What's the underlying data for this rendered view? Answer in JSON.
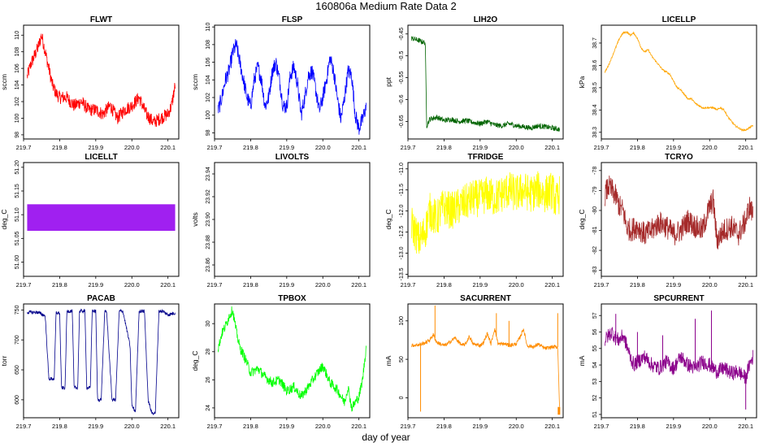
{
  "figure": {
    "title": "160806a   Medium Rate Data 2",
    "xlabel": "day of year"
  },
  "chart_data": [
    {
      "type": "line",
      "title": "FLWT",
      "ylabel": "sccm",
      "color": "#ff0000",
      "xlim": [
        219.7,
        220.13
      ],
      "ylim": [
        97.5,
        111.2
      ],
      "yticks": [
        98,
        100,
        102,
        104,
        106,
        108,
        110
      ],
      "xticks": [
        219.7,
        219.8,
        219.9,
        220.0,
        220.1
      ],
      "xticklabels": [
        "219.7",
        "219.8",
        "219.9",
        "220.0",
        "220.1"
      ],
      "x": [
        219.71,
        219.72,
        219.73,
        219.74,
        219.75,
        219.76,
        219.77,
        219.78,
        219.79,
        219.8,
        219.82,
        219.84,
        219.86,
        219.88,
        219.9,
        219.92,
        219.94,
        219.96,
        219.98,
        220.0,
        220.02,
        220.04,
        220.06,
        220.08,
        220.1,
        220.11,
        220.12
      ],
      "y": [
        105,
        106.5,
        107.5,
        108.5,
        110,
        108,
        106,
        104,
        103,
        102.5,
        102.5,
        101.5,
        102,
        101,
        101,
        100.5,
        101.5,
        100,
        101,
        101.5,
        102.5,
        100.5,
        99.5,
        100,
        100.5,
        101.5,
        104
      ],
      "band": 1.6
    },
    {
      "type": "line",
      "title": "FLSP",
      "ylabel": "sccm",
      "color": "#0000ff",
      "xlim": [
        219.7,
        220.13
      ],
      "ylim": [
        97.3,
        110.2
      ],
      "yticks": [
        98,
        100,
        102,
        104,
        106,
        108,
        110
      ],
      "xticks": [
        219.7,
        219.8,
        219.9,
        220.0,
        220.1
      ],
      "xticklabels": [
        "219.7",
        "219.8",
        "219.9",
        "220.0",
        "220.1"
      ],
      "x": [
        219.71,
        219.72,
        219.73,
        219.74,
        219.75,
        219.76,
        219.77,
        219.78,
        219.79,
        219.8,
        219.81,
        219.82,
        219.83,
        219.84,
        219.85,
        219.86,
        219.87,
        219.88,
        219.89,
        219.9,
        219.91,
        219.92,
        219.93,
        219.94,
        219.95,
        219.96,
        219.97,
        219.98,
        219.99,
        220.0,
        220.01,
        220.02,
        220.03,
        220.04,
        220.05,
        220.06,
        220.07,
        220.08,
        220.09,
        220.1,
        220.11,
        220.12
      ],
      "y": [
        100.5,
        102,
        104,
        105,
        107,
        108,
        106,
        104,
        102,
        101,
        104,
        105.5,
        104,
        101,
        102,
        105,
        106,
        104,
        101,
        101,
        104.5,
        105.5,
        103.5,
        100,
        102,
        104.5,
        105,
        103,
        100.5,
        102,
        104,
        106.5,
        105,
        102,
        99.5,
        102,
        105,
        104.5,
        100,
        98.5,
        99.5,
        101
      ],
      "band": 1.8
    },
    {
      "type": "line",
      "title": "LIH2O",
      "ylabel": "ppt",
      "color": "#006400",
      "xlim": [
        219.7,
        220.13
      ],
      "ylim": [
        -0.69,
        -0.43
      ],
      "yticks": [
        -0.65,
        -0.6,
        -0.55,
        -0.5,
        -0.45
      ],
      "xticks": [
        219.7,
        219.8,
        219.9,
        220.0,
        220.1
      ],
      "xticklabels": [
        "219.7",
        "219.8",
        "219.9",
        "220.0",
        "220.1"
      ],
      "x": [
        219.71,
        219.72,
        219.73,
        219.74,
        219.748,
        219.752,
        219.76,
        219.78,
        219.8,
        219.82,
        219.84,
        219.86,
        219.88,
        219.9,
        219.92,
        219.94,
        219.96,
        219.98,
        220.0,
        220.02,
        220.04,
        220.06,
        220.08,
        220.1,
        220.12
      ],
      "y": [
        -0.46,
        -0.462,
        -0.465,
        -0.468,
        -0.47,
        -0.66,
        -0.645,
        -0.64,
        -0.648,
        -0.645,
        -0.65,
        -0.648,
        -0.652,
        -0.655,
        -0.65,
        -0.658,
        -0.66,
        -0.655,
        -0.66,
        -0.662,
        -0.665,
        -0.66,
        -0.662,
        -0.665,
        -0.668
      ],
      "band": 0.012
    },
    {
      "type": "line",
      "title": "LICELLP",
      "ylabel": "kPa",
      "color": "#ffa500",
      "xlim": [
        219.7,
        220.13
      ],
      "ylim": [
        38.27,
        38.78
      ],
      "yticks": [
        38.3,
        38.4,
        38.5,
        38.6,
        38.7
      ],
      "xticks": [
        219.7,
        219.8,
        219.9,
        220.0,
        220.1
      ],
      "xticklabels": [
        "219.7",
        "219.8",
        "219.9",
        "220.0",
        "220.1"
      ],
      "x": [
        219.71,
        219.72,
        219.73,
        219.74,
        219.75,
        219.76,
        219.77,
        219.78,
        219.79,
        219.8,
        219.81,
        219.82,
        219.83,
        219.84,
        219.85,
        219.86,
        219.87,
        219.88,
        219.89,
        219.9,
        219.91,
        219.92,
        219.93,
        219.94,
        219.95,
        219.96,
        219.97,
        219.98,
        219.99,
        220.0,
        220.01,
        220.02,
        220.03,
        220.04,
        220.05,
        220.06,
        220.07,
        220.08,
        220.09,
        220.1,
        220.11,
        220.12
      ],
      "y": [
        38.57,
        38.6,
        38.64,
        38.68,
        38.72,
        38.745,
        38.75,
        38.735,
        38.745,
        38.72,
        38.68,
        38.66,
        38.67,
        38.64,
        38.62,
        38.6,
        38.58,
        38.57,
        38.56,
        38.53,
        38.5,
        38.49,
        38.47,
        38.45,
        38.45,
        38.43,
        38.42,
        38.41,
        38.41,
        38.41,
        38.41,
        38.4,
        38.41,
        38.4,
        38.37,
        38.35,
        38.33,
        38.32,
        38.31,
        38.31,
        38.32,
        38.33
      ],
      "band": 0.008
    },
    {
      "type": "bar",
      "title": "LICELLT",
      "ylabel": "deg_C",
      "color": "#a020f0",
      "xlim": [
        219.7,
        220.13
      ],
      "ylim": [
        50.97,
        51.21
      ],
      "yticks": [
        51.0,
        51.05,
        51.1,
        51.15,
        51.2
      ],
      "yticklabels": [
        "51.00",
        "51.05",
        "51.10",
        "51.15",
        "51.20"
      ],
      "xticks": [
        219.7,
        219.8,
        219.9,
        220.0,
        220.1
      ],
      "xticklabels": [
        "219.7",
        "219.8",
        "219.9",
        "220.0",
        "220.1"
      ],
      "x": [
        219.71,
        220.12
      ],
      "y": [
        51.08,
        51.08
      ],
      "band_low": 51.066,
      "band_high": 51.122
    },
    {
      "type": "line",
      "title": "LIVOLTS",
      "ylabel": "volts",
      "color": "#000000",
      "xlim": [
        219.7,
        220.13
      ],
      "ylim": [
        23.85,
        23.95
      ],
      "yticks": [
        23.86,
        23.88,
        23.9,
        23.92,
        23.94
      ],
      "yticklabels": [
        "23.86",
        "23.88",
        "23.90",
        "23.92",
        "23.94"
      ],
      "xticks": [
        219.7,
        219.8,
        219.9,
        220.0,
        220.1
      ],
      "xticklabels": [
        "219.7",
        "219.8",
        "219.9",
        "220.0",
        "220.1"
      ],
      "x": [],
      "y": [],
      "band": 0
    },
    {
      "type": "line",
      "title": "TFRIDGE",
      "ylabel": "deg_C",
      "color": "#ffff00",
      "xlim": [
        219.7,
        220.13
      ],
      "ylim": [
        -13.55,
        -10.85
      ],
      "yticks": [
        -13.5,
        -13.0,
        -12.5,
        -12.0,
        -11.5,
        -11.0
      ],
      "yticklabels": [
        "-13.5",
        "-13.0",
        "-12.5",
        "-12.0",
        "-11.5",
        "-11.0"
      ],
      "xticks": [
        219.7,
        219.8,
        219.9,
        220.0,
        220.1
      ],
      "xticklabels": [
        "219.7",
        "219.8",
        "219.9",
        "220.0",
        "220.1"
      ],
      "x": [
        219.71,
        219.72,
        219.73,
        219.74,
        219.75,
        219.76,
        219.77,
        219.78,
        219.79,
        219.8,
        219.82,
        219.84,
        219.86,
        219.88,
        219.9,
        219.92,
        219.94,
        219.96,
        219.98,
        220.0,
        220.02,
        220.04,
        220.06,
        220.08,
        220.1,
        220.11,
        220.12
      ],
      "y": [
        -12.3,
        -12.5,
        -12.7,
        -12.6,
        -12.4,
        -12.0,
        -12.1,
        -12.2,
        -12.0,
        -11.9,
        -12.0,
        -11.9,
        -11.8,
        -11.7,
        -11.7,
        -11.6,
        -11.7,
        -11.6,
        -11.5,
        -11.6,
        -11.5,
        -11.6,
        -11.5,
        -11.6,
        -11.5,
        -11.8,
        -11.6
      ],
      "band": 0.9
    },
    {
      "type": "line",
      "title": "TCRYO",
      "ylabel": "deg_C",
      "color": "#a52a2a",
      "xlim": [
        219.7,
        220.13
      ],
      "ylim": [
        -83.3,
        -77.6
      ],
      "yticks": [
        -83,
        -82,
        -81,
        -80,
        -79,
        -78
      ],
      "xticks": [
        219.7,
        219.8,
        219.9,
        220.0,
        220.1
      ],
      "xticklabels": [
        "219.7",
        "219.8",
        "219.9",
        "220.0",
        "220.1"
      ],
      "x": [
        219.71,
        219.72,
        219.73,
        219.74,
        219.75,
        219.76,
        219.77,
        219.78,
        219.8,
        219.82,
        219.84,
        219.86,
        219.88,
        219.9,
        219.92,
        219.94,
        219.96,
        219.98,
        220.0,
        220.01,
        220.02,
        220.04,
        220.06,
        220.08,
        220.1,
        220.11,
        220.12
      ],
      "y": [
        -79.2,
        -78.8,
        -79.0,
        -79.3,
        -79.8,
        -80.0,
        -80.8,
        -81.0,
        -80.8,
        -81.2,
        -81.0,
        -80.6,
        -80.8,
        -81.2,
        -81.0,
        -80.5,
        -80.8,
        -81.0,
        -79.8,
        -79.5,
        -81.5,
        -81.0,
        -80.8,
        -81.2,
        -80.5,
        -79.8,
        -80.2
      ],
      "band": 1.2
    },
    {
      "type": "line",
      "title": "PACAB",
      "ylabel": "torr",
      "color": "#00008b",
      "xlim": [
        219.7,
        220.13
      ],
      "ylim": [
        570,
        760
      ],
      "yticks": [
        600,
        650,
        700,
        750
      ],
      "xticks": [
        219.7,
        219.8,
        219.9,
        220.0,
        220.1
      ],
      "xticklabels": [
        "219.7",
        "219.8",
        "219.9",
        "220.0",
        "220.1"
      ],
      "x": [
        219.71,
        219.74,
        219.76,
        219.77,
        219.785,
        219.79,
        219.8,
        219.805,
        219.815,
        219.82,
        219.835,
        219.84,
        219.85,
        219.855,
        219.87,
        219.875,
        219.885,
        219.89,
        219.9,
        219.905,
        219.915,
        219.925,
        219.93,
        219.945,
        219.955,
        219.965,
        219.975,
        219.985,
        219.995,
        220.0,
        220.01,
        220.02,
        220.035,
        220.045,
        220.055,
        220.065,
        220.075,
        220.085,
        220.1,
        220.12
      ],
      "y": [
        746,
        746,
        740,
        635,
        635,
        745,
        745,
        620,
        620,
        748,
        748,
        620,
        620,
        748,
        748,
        620,
        620,
        748,
        748,
        600,
        600,
        748,
        748,
        600,
        600,
        748,
        748,
        720,
        690,
        590,
        580,
        748,
        748,
        600,
        578,
        578,
        748,
        748,
        742,
        745
      ],
      "band": 6
    },
    {
      "type": "line",
      "title": "TPBOX",
      "ylabel": "deg_C",
      "color": "#00ff00",
      "xlim": [
        219.7,
        220.13
      ],
      "ylim": [
        23.3,
        31.4
      ],
      "yticks": [
        24,
        26,
        28,
        30
      ],
      "xticks": [
        219.7,
        219.8,
        219.9,
        220.0,
        220.1
      ],
      "xticklabels": [
        "219.7",
        "219.8",
        "219.9",
        "220.0",
        "220.1"
      ],
      "x": [
        219.71,
        219.72,
        219.73,
        219.74,
        219.75,
        219.76,
        219.77,
        219.78,
        219.79,
        219.8,
        219.82,
        219.84,
        219.86,
        219.88,
        219.9,
        219.92,
        219.94,
        219.96,
        219.98,
        220.0,
        220.02,
        220.04,
        220.06,
        220.07,
        220.08,
        220.1,
        220.11,
        220.12
      ],
      "y": [
        28.2,
        29.3,
        29.8,
        30.5,
        31.0,
        29.5,
        28.3,
        27.8,
        27.2,
        26.5,
        26.8,
        26.2,
        25.8,
        26.0,
        25.2,
        25.5,
        24.8,
        25.5,
        26.3,
        27.0,
        25.8,
        25.3,
        24.4,
        25.5,
        24.0,
        24.8,
        26.0,
        28.3
      ],
      "band": 0.7
    },
    {
      "type": "line",
      "title": "SACURRENT",
      "ylabel": "mA",
      "color": "#ff8c00",
      "xlim": [
        219.7,
        220.13
      ],
      "ylim": [
        -26,
        122
      ],
      "yticks": [
        0,
        50,
        100
      ],
      "xticks": [
        219.7,
        219.8,
        219.9,
        220.0,
        220.1
      ],
      "xticklabels": [
        "219.7",
        "219.8",
        "219.9",
        "220.0",
        "220.1"
      ],
      "x": [
        219.71,
        219.73,
        219.74,
        219.75,
        219.76,
        219.77,
        219.78,
        219.8,
        219.81,
        219.82,
        219.83,
        219.85,
        219.86,
        219.87,
        219.88,
        219.9,
        219.91,
        219.92,
        219.93,
        219.94,
        219.95,
        219.97,
        219.98,
        220.0,
        220.01,
        220.02,
        220.03,
        220.05,
        220.06,
        220.08,
        220.1,
        220.115,
        220.12
      ],
      "y": [
        68,
        69,
        70,
        72,
        75,
        82,
        72,
        68,
        70,
        74,
        78,
        68,
        70,
        80,
        70,
        68,
        72,
        84,
        70,
        90,
        70,
        70,
        68,
        70,
        78,
        90,
        68,
        66,
        70,
        64,
        66,
        66,
        -12
      ],
      "band": 5,
      "spikes": [
        [
          219.735,
          -18
        ],
        [
          219.775,
          120
        ],
        [
          219.945,
          110
        ],
        [
          219.98,
          100
        ],
        [
          220.115,
          110
        ]
      ]
    },
    {
      "type": "line",
      "title": "SPCURRENT",
      "ylabel": "mA",
      "color": "#8b008b",
      "xlim": [
        219.7,
        220.13
      ],
      "ylim": [
        50.8,
        57.7
      ],
      "yticks": [
        51,
        52,
        53,
        54,
        55,
        56,
        57
      ],
      "xticks": [
        219.7,
        219.8,
        219.9,
        220.0,
        220.1
      ],
      "xticklabels": [
        "219.7",
        "219.8",
        "219.9",
        "220.0",
        "220.1"
      ],
      "x": [
        219.71,
        219.72,
        219.73,
        219.74,
        219.75,
        219.76,
        219.77,
        219.78,
        219.79,
        219.8,
        219.82,
        219.84,
        219.86,
        219.88,
        219.9,
        219.92,
        219.94,
        219.96,
        219.98,
        220.0,
        220.02,
        220.04,
        220.06,
        220.08,
        220.1,
        220.11,
        220.12
      ],
      "y": [
        55.5,
        55.8,
        56.0,
        55.6,
        55.5,
        55.8,
        55.2,
        54.5,
        54.0,
        54.2,
        54.5,
        54.0,
        53.8,
        54.2,
        53.8,
        54.5,
        54.0,
        53.8,
        54.2,
        54.0,
        53.6,
        53.8,
        53.5,
        53.6,
        53.2,
        54.0,
        54.5
      ],
      "band": 0.9,
      "spikes": [
        [
          219.74,
          57.1
        ],
        [
          219.96,
          56.8
        ],
        [
          220.005,
          57.3
        ],
        [
          219.8,
          56.0
        ],
        [
          219.87,
          55.8
        ],
        [
          220.1,
          51.3
        ]
      ]
    }
  ]
}
